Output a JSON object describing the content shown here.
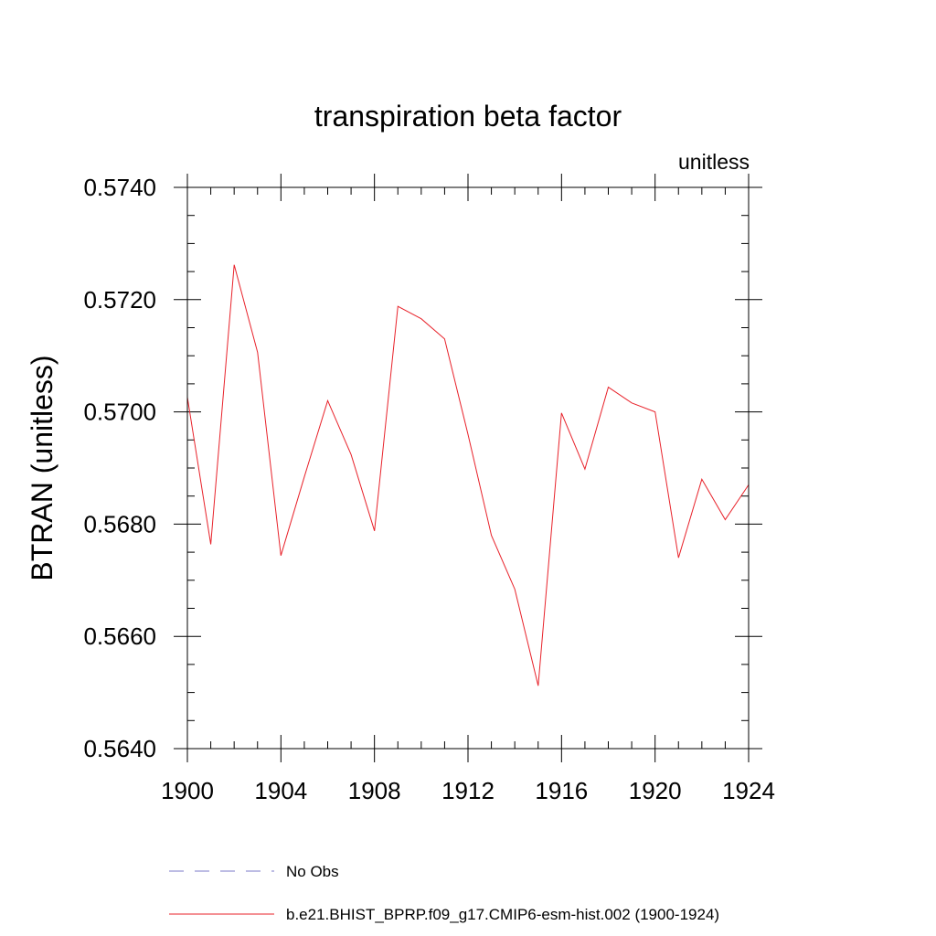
{
  "chart_data": {
    "type": "line",
    "title": "transpiration beta factor",
    "units_label": "unitless",
    "ylabel": "BTRAN  (unitless)",
    "xlabel": "",
    "xlim": [
      1900,
      1924
    ],
    "ylim": [
      0.564,
      0.574
    ],
    "xticks": [
      1900,
      1904,
      1908,
      1912,
      1916,
      1920,
      1924
    ],
    "xtick_labels": [
      "1900",
      "1904",
      "1908",
      "1912",
      "1916",
      "1920",
      "1924"
    ],
    "yticks": [
      0.564,
      0.566,
      0.568,
      0.57,
      0.572,
      0.574
    ],
    "ytick_labels": [
      "0.5640",
      "0.5660",
      "0.5680",
      "0.5700",
      "0.5720",
      "0.5740"
    ],
    "grid": false,
    "legend_placement": "bottom",
    "series": [
      {
        "name": "b.e21.BHIST_BPRP.f09_g17.CMIP6-esm-hist.002 (1900-1924)",
        "color": "#e8222a",
        "style": "solid",
        "x": [
          1900,
          1901,
          1902,
          1903,
          1904,
          1905,
          1906,
          1907,
          1908,
          1909,
          1910,
          1911,
          1912,
          1913,
          1914,
          1915,
          1916,
          1917,
          1918,
          1919,
          1920,
          1921,
          1922,
          1923,
          1924
        ],
        "values": [
          0.57026,
          0.56764,
          0.57262,
          0.57106,
          0.56744,
          0.56884,
          0.5702,
          0.56924,
          0.56788,
          0.57188,
          0.57166,
          0.5713,
          0.5696,
          0.5678,
          0.56684,
          0.56512,
          0.56998,
          0.56898,
          0.57044,
          0.57016,
          0.57,
          0.5674,
          0.5688,
          0.56808,
          0.5687
        ]
      }
    ],
    "legend": [
      {
        "label": "No Obs",
        "color": "#7b78c8",
        "style": "dashed"
      },
      {
        "label": "b.e21.BHIST_BPRP.f09_g17.CMIP6-esm-hist.002 (1900-1924)",
        "color": "#e8222a",
        "style": "solid"
      }
    ]
  }
}
